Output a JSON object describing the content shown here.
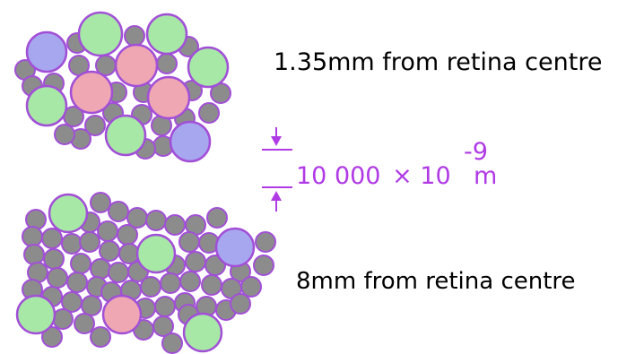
{
  "labels": {
    "top": "1.35mm from retina centre",
    "bottom": "8mm from retina centre"
  },
  "scale": {
    "value": "10 000",
    "times": "×",
    "base": "10",
    "exponent": "-9",
    "unit": "m"
  },
  "colors": {
    "rod": "#8C8C8C",
    "outline": "#A24FD7",
    "green_cone": "#A7E8A7",
    "red_cone": "#EFA7B3",
    "blue_cone": "#A7A7EF",
    "scale": "#B03AE6"
  }
}
